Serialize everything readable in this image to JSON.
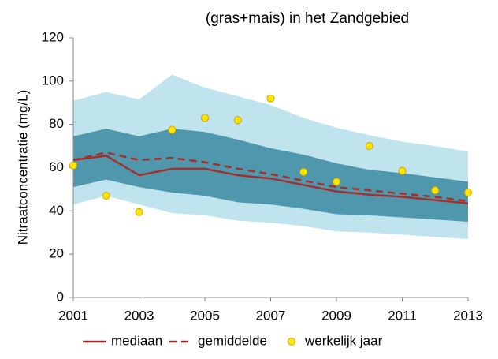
{
  "chart_data": {
    "type": "line",
    "title": "(gras+mais) in het Zandgebied",
    "y_label": "Nitraatconcentratie (mg/L)",
    "x": [
      2001,
      2002,
      2003,
      2004,
      2005,
      2006,
      2007,
      2008,
      2009,
      2010,
      2011,
      2012,
      2013
    ],
    "xlim": [
      2001,
      2013
    ],
    "xticks": [
      2001,
      2003,
      2005,
      2007,
      2009,
      2011,
      2013
    ],
    "ylim": [
      0,
      120
    ],
    "yticks": [
      0,
      20,
      40,
      60,
      80,
      100,
      120
    ],
    "grid": false,
    "legend": "bottom",
    "bands": [
      {
        "color": "#bfe4ee",
        "upper": [
          91,
          95,
          91.5,
          103,
          97,
          93,
          89,
          83,
          78.5,
          75,
          72,
          70,
          67.5
        ],
        "lower": [
          43,
          47,
          43,
          39,
          38,
          35.5,
          34.5,
          33,
          30.5,
          30,
          29,
          28,
          27
        ]
      },
      {
        "color": "#4f97ac",
        "upper": [
          74.5,
          78,
          74.5,
          78,
          76.5,
          73,
          69,
          66,
          62,
          59,
          57.5,
          55.5,
          53.5
        ],
        "lower": [
          51,
          54.5,
          51,
          48.5,
          47,
          44,
          43,
          41,
          38.5,
          38,
          37,
          36,
          35
        ]
      }
    ],
    "series": [
      {
        "name": "mediaan",
        "type": "line",
        "dashed": false,
        "color": "#a3302e",
        "values": [
          63.5,
          65.5,
          56.5,
          59.5,
          59.5,
          56.5,
          55,
          52,
          49,
          47.5,
          46.5,
          45,
          43.5
        ]
      },
      {
        "name": "gemiddelde",
        "type": "line",
        "dashed": true,
        "color": "#a3302e",
        "values": [
          63.5,
          67,
          63.5,
          64.5,
          62.5,
          59.5,
          57,
          54,
          51,
          49.5,
          48,
          46.5,
          44.5
        ]
      },
      {
        "name": "werkelijk jaar",
        "type": "scatter",
        "color": "#ffe800",
        "stroke": "#d9a300",
        "values": [
          61,
          47,
          39.5,
          77.5,
          83,
          82,
          92,
          58,
          53.5,
          70,
          58.5,
          49.5,
          48.5
        ]
      }
    ]
  }
}
